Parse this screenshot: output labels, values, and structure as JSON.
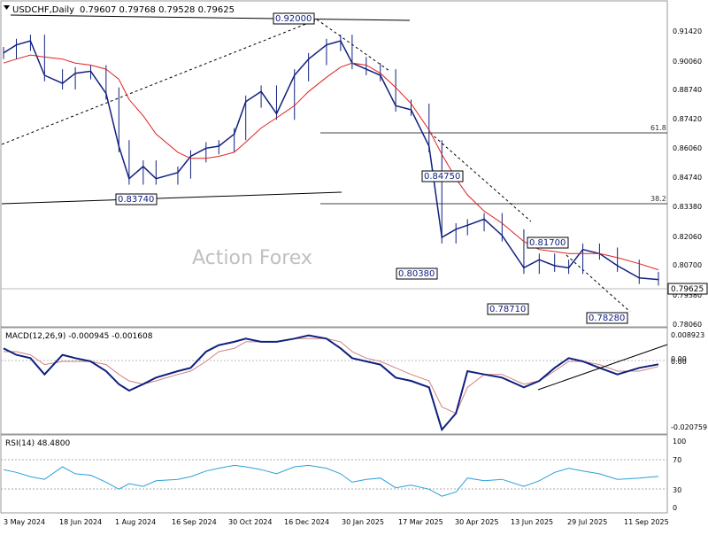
{
  "header": {
    "symbol_label": "USDCHF,Daily",
    "ohlc_label": "0.79607 0.79768 0.79528 0.79625"
  },
  "watermark": "Action Forex",
  "price_panel": {
    "current_price_label": "0.79625",
    "y_ticks": [
      "0.91420",
      "0.90060",
      "0.88740",
      "0.87420",
      "0.86060",
      "0.84740",
      "0.83380",
      "0.82060",
      "0.80700",
      "0.79380",
      "0.78060"
    ],
    "fib_labels": {
      "f618": "61.8",
      "f382": "38.2"
    },
    "annotations": [
      "0.92000",
      "0.83740",
      "0.84750",
      "0.80380",
      "0.81700",
      "0.78710",
      "0.78280"
    ]
  },
  "macd_panel": {
    "label": "MACD(12,26,9) -0.000945 -0.001608",
    "y_ticks": [
      "0.008923",
      "0.00",
      "0.00",
      "-0.020759"
    ]
  },
  "rsi_panel": {
    "label": "RSI(14) 48.4800",
    "y_ticks": [
      "100",
      "70",
      "30",
      "0"
    ]
  },
  "x_axis_labels": [
    "3 May 2024",
    "18 Jun 2024",
    "1 Aug 2024",
    "16 Sep 2024",
    "30 Oct 2024",
    "16 Dec 2024",
    "30 Jan 2025",
    "17 Mar 2025",
    "30 Apr 2025",
    "13 Jun 2025",
    "29 Jul 2025",
    "11 Sep 2025"
  ],
  "colors": {
    "sma": "#e02020",
    "macd": "#102080",
    "signal": "#d08080",
    "rsi": "#2aa0d8",
    "candles": "#102080"
  },
  "chart_data": [
    {
      "type": "line",
      "panel": "price",
      "symbol": "USDCHF",
      "timeframe": "Daily",
      "ylim": [
        0.7746,
        0.9254
      ],
      "x": [
        "2024-05-03",
        "2024-05-13",
        "2024-05-24",
        "2024-06-04",
        "2024-06-18",
        "2024-06-28",
        "2024-07-10",
        "2024-07-22",
        "2024-08-01",
        "2024-08-09",
        "2024-08-20",
        "2024-08-30",
        "2024-09-16",
        "2024-09-26",
        "2024-10-08",
        "2024-10-18",
        "2024-10-30",
        "2024-11-08",
        "2024-11-20",
        "2024-12-02",
        "2024-12-16",
        "2024-12-27",
        "2025-01-10",
        "2025-01-21",
        "2025-01-30",
        "2025-02-10",
        "2025-02-21",
        "2025-03-05",
        "2025-03-17",
        "2025-03-31",
        "2025-04-10",
        "2025-04-21",
        "2025-04-30",
        "2025-05-13",
        "2025-05-27",
        "2025-06-13",
        "2025-06-25",
        "2025-07-07",
        "2025-07-18",
        "2025-07-29",
        "2025-08-11",
        "2025-08-25",
        "2025-09-11",
        "2025-09-26"
      ],
      "series": [
        {
          "role": "close",
          "values": [
            0.908,
            0.912,
            0.914,
            0.897,
            0.893,
            0.898,
            0.899,
            0.888,
            0.862,
            0.846,
            0.852,
            0.846,
            0.849,
            0.857,
            0.861,
            0.862,
            0.868,
            0.884,
            0.889,
            0.878,
            0.897,
            0.905,
            0.912,
            0.914,
            0.903,
            0.9,
            0.897,
            0.882,
            0.88,
            0.862,
            0.817,
            0.821,
            0.823,
            0.826,
            0.818,
            0.802,
            0.806,
            0.803,
            0.802,
            0.811,
            0.809,
            0.803,
            0.797,
            0.7962
          ]
        },
        {
          "role": "moving-average",
          "values": [
            0.903,
            0.905,
            0.907,
            0.906,
            0.905,
            0.903,
            0.902,
            0.9,
            0.895,
            0.885,
            0.877,
            0.868,
            0.859,
            0.856,
            0.856,
            0.857,
            0.859,
            0.864,
            0.871,
            0.876,
            0.882,
            0.889,
            0.896,
            0.901,
            0.903,
            0.902,
            0.898,
            0.891,
            0.883,
            0.87,
            0.858,
            0.846,
            0.838,
            0.83,
            0.824,
            0.815,
            0.811,
            0.81,
            0.809,
            0.809,
            0.809,
            0.807,
            0.804,
            0.801
          ]
        }
      ],
      "levels": {
        "fib_61_8": 0.8676,
        "fib_38_2": 0.8352
      },
      "annotations": [
        {
          "label": "0.92000",
          "date": "2024-12-18",
          "price": 0.92
        },
        {
          "label": "0.83740",
          "date": "2024-08-09",
          "price": 0.8374
        },
        {
          "label": "0.84750",
          "date": "2025-04-03",
          "price": 0.8475
        },
        {
          "label": "0.80380",
          "date": "2025-04-21",
          "price": 0.8038
        },
        {
          "label": "0.81700",
          "date": "2025-07-01",
          "price": 0.817
        },
        {
          "label": "0.78710",
          "date": "2025-06-25",
          "price": 0.7871
        },
        {
          "label": "0.78280",
          "date": "2025-09-11",
          "price": 0.7828
        }
      ]
    },
    {
      "type": "line",
      "panel": "macd",
      "ylim": [
        -0.0218,
        0.0098
      ],
      "x": [
        "2024-05-03",
        "2024-05-13",
        "2024-05-24",
        "2024-06-04",
        "2024-06-18",
        "2024-06-28",
        "2024-07-10",
        "2024-07-22",
        "2024-08-01",
        "2024-08-09",
        "2024-08-20",
        "2024-08-30",
        "2024-09-16",
        "2024-09-26",
        "2024-10-08",
        "2024-10-18",
        "2024-10-30",
        "2024-11-08",
        "2024-11-20",
        "2024-12-02",
        "2024-12-16",
        "2024-12-27",
        "2025-01-10",
        "2025-01-21",
        "2025-01-30",
        "2025-02-10",
        "2025-02-21",
        "2025-03-05",
        "2025-03-17",
        "2025-03-31",
        "2025-04-10",
        "2025-04-21",
        "2025-04-30",
        "2025-05-13",
        "2025-05-27",
        "2025-06-13",
        "2025-06-25",
        "2025-07-07",
        "2025-07-18",
        "2025-07-29",
        "2025-08-11",
        "2025-08-25",
        "2025-09-11",
        "2025-09-26"
      ],
      "series": [
        {
          "role": "macd",
          "values": [
            0.004,
            0.002,
            0.001,
            -0.004,
            0.002,
            0.001,
            0.0,
            -0.003,
            -0.007,
            -0.009,
            -0.007,
            -0.005,
            -0.003,
            -0.002,
            0.003,
            0.005,
            0.006,
            0.007,
            0.006,
            0.006,
            0.007,
            0.008,
            0.007,
            0.004,
            0.001,
            0.0,
            -0.001,
            -0.005,
            -0.006,
            -0.008,
            -0.021,
            -0.016,
            -0.003,
            -0.004,
            -0.005,
            -0.008,
            -0.006,
            -0.002,
            0.001,
            0.0,
            -0.002,
            -0.004,
            -0.002,
            -0.0009
          ]
        },
        {
          "role": "signal",
          "values": [
            0.003,
            0.003,
            0.002,
            -0.001,
            0.0,
            0.0,
            0.0,
            -0.001,
            -0.004,
            -0.006,
            -0.007,
            -0.006,
            -0.004,
            -0.003,
            0.0,
            0.003,
            0.004,
            0.006,
            0.006,
            0.006,
            0.007,
            0.007,
            0.007,
            0.006,
            0.003,
            0.001,
            0.0,
            -0.002,
            -0.004,
            -0.006,
            -0.014,
            -0.016,
            -0.008,
            -0.004,
            -0.004,
            -0.007,
            -0.006,
            -0.003,
            0.0,
            0.0,
            -0.001,
            -0.003,
            -0.003,
            -0.0016
          ]
        }
      ]
    },
    {
      "type": "line",
      "panel": "rsi",
      "ylim": [
        0,
        100
      ],
      "levels": [
        70,
        30
      ],
      "x": [
        "2024-05-03",
        "2024-05-13",
        "2024-05-24",
        "2024-06-04",
        "2024-06-18",
        "2024-06-28",
        "2024-07-10",
        "2024-07-22",
        "2024-08-01",
        "2024-08-09",
        "2024-08-20",
        "2024-08-30",
        "2024-09-16",
        "2024-09-26",
        "2024-10-08",
        "2024-10-18",
        "2024-10-30",
        "2024-11-08",
        "2024-11-20",
        "2024-12-02",
        "2024-12-16",
        "2024-12-27",
        "2025-01-10",
        "2025-01-21",
        "2025-01-30",
        "2025-02-10",
        "2025-02-21",
        "2025-03-05",
        "2025-03-17",
        "2025-03-31",
        "2025-04-10",
        "2025-04-21",
        "2025-04-30",
        "2025-05-13",
        "2025-05-27",
        "2025-06-13",
        "2025-06-25",
        "2025-07-07",
        "2025-07-18",
        "2025-07-29",
        "2025-08-11",
        "2025-08-25",
        "2025-09-11",
        "2025-09-26"
      ],
      "series": [
        {
          "role": "rsi",
          "values": [
            58,
            54,
            48,
            44,
            62,
            52,
            50,
            40,
            30,
            38,
            34,
            42,
            44,
            48,
            56,
            60,
            64,
            62,
            58,
            52,
            62,
            64,
            60,
            52,
            40,
            44,
            46,
            32,
            36,
            30,
            20,
            26,
            46,
            42,
            44,
            34,
            42,
            54,
            60,
            56,
            52,
            44,
            46,
            48.48
          ]
        }
      ]
    }
  ]
}
